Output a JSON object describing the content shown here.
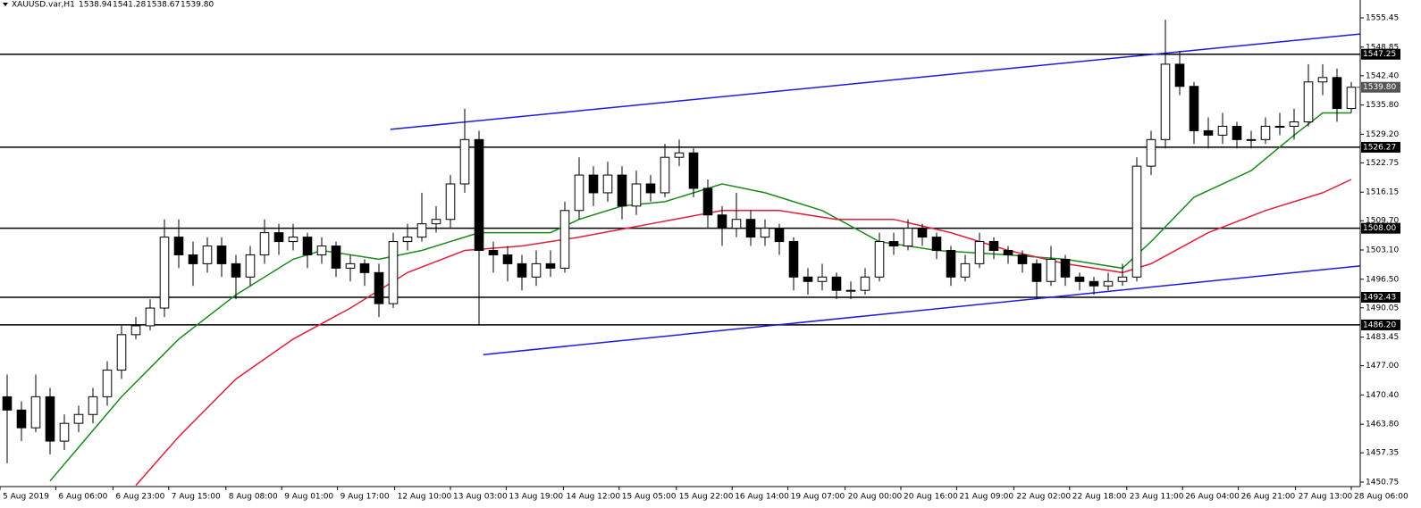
{
  "chart_data": {
    "type": "candlestick",
    "title": "XAUUSD.var,H1",
    "header_values": [
      "1538.94",
      "1541.28",
      "1538.67",
      "1539.80"
    ],
    "open": [
      1470,
      1467,
      1463,
      1470,
      1460,
      1464,
      1466,
      1470,
      1476,
      1484,
      1486,
      1490,
      1506,
      1502,
      1500,
      1504,
      1500,
      1497,
      1502,
      1507,
      1505,
      1506,
      1502,
      1504,
      1499,
      1500,
      1498,
      1491,
      1505,
      1506,
      1509,
      1510,
      1518,
      1528,
      1503,
      1502,
      1500,
      1497,
      1500,
      1499,
      1512,
      1520,
      1516,
      1520,
      1513,
      1518,
      1516,
      1524,
      1525,
      1517,
      1511,
      1508,
      1510,
      1506,
      1508,
      1505,
      1497,
      1496,
      1497,
      1494,
      1494,
      1497,
      1505,
      1504,
      1508,
      1506,
      1503,
      1497,
      1500,
      1505,
      1503,
      1502,
      1500,
      1496,
      1501,
      1497,
      1496,
      1495,
      1496,
      1497,
      1522,
      1528,
      1545,
      1540,
      1530,
      1529,
      1531,
      1528,
      1528,
      1531,
      1531,
      1532,
      1541,
      1542,
      1535
    ],
    "high": [
      1475,
      1469,
      1475,
      1472,
      1466,
      1468,
      1472,
      1478,
      1486,
      1488,
      1492,
      1510,
      1510,
      1505,
      1506,
      1506,
      1502,
      1504,
      1510,
      1509,
      1509,
      1507,
      1506,
      1505,
      1502,
      1501,
      1500,
      1507,
      1509,
      1516,
      1513,
      1520,
      1535,
      1530,
      1505,
      1504,
      1502,
      1503,
      1503,
      1514,
      1524,
      1522,
      1523,
      1522,
      1521,
      1520,
      1527,
      1528,
      1526,
      1519,
      1513,
      1516,
      1512,
      1510,
      1509,
      1506,
      1499,
      1500,
      1498,
      1496,
      1499,
      1507,
      1507,
      1510,
      1509,
      1507,
      1504,
      1502,
      1507,
      1506,
      1504,
      1503,
      1501,
      1504,
      1502,
      1498,
      1497,
      1498,
      1500,
      1524,
      1530,
      1555,
      1548,
      1541,
      1533,
      1534,
      1532,
      1530,
      1533,
      1534,
      1535,
      1545,
      1545,
      1544,
      1541
    ],
    "low": [
      1455,
      1460,
      1462,
      1457,
      1458,
      1462,
      1464,
      1468,
      1474,
      1483,
      1485,
      1488,
      1499,
      1495,
      1498,
      1497,
      1492,
      1495,
      1500,
      1502,
      1503,
      1499,
      1500,
      1497,
      1496,
      1495,
      1488,
      1490,
      1503,
      1505,
      1507,
      1508,
      1516,
      1486,
      1498,
      1496,
      1494,
      1495,
      1497,
      1498,
      1510,
      1513,
      1514,
      1510,
      1511,
      1514,
      1515,
      1522,
      1515,
      1508,
      1504,
      1506,
      1504,
      1504,
      1502,
      1494,
      1493,
      1494,
      1492,
      1492,
      1493,
      1496,
      1502,
      1503,
      1504,
      1501,
      1495,
      1496,
      1499,
      1501,
      1500,
      1498,
      1492,
      1495,
      1495,
      1494,
      1493,
      1494,
      1495,
      1496,
      1520,
      1526,
      1538,
      1527,
      1526,
      1527,
      1526,
      1526,
      1527,
      1529,
      1528,
      1531,
      1538,
      1532,
      1534
    ],
    "close": [
      1467,
      1463,
      1470,
      1460,
      1464,
      1466,
      1470,
      1476,
      1484,
      1486,
      1490,
      1506,
      1502,
      1500,
      1504,
      1500,
      1497,
      1502,
      1507,
      1505,
      1506,
      1502,
      1504,
      1499,
      1500,
      1498,
      1491,
      1505,
      1506,
      1509,
      1510,
      1518,
      1528,
      1503,
      1502,
      1500,
      1497,
      1500,
      1499,
      1512,
      1520,
      1516,
      1520,
      1513,
      1518,
      1516,
      1524,
      1525,
      1517,
      1511,
      1508,
      1510,
      1506,
      1508,
      1505,
      1497,
      1496,
      1497,
      1494,
      1494,
      1497,
      1505,
      1504,
      1508,
      1506,
      1503,
      1497,
      1500,
      1505,
      1503,
      1502,
      1500,
      1496,
      1501,
      1497,
      1496,
      1495,
      1496,
      1497,
      1522,
      1528,
      1545,
      1540,
      1530,
      1529,
      1531,
      1528,
      1528,
      1531,
      1531,
      1532,
      1541,
      1542,
      1535,
      1539.8
    ],
    "lines": [
      {
        "color": "#1a8a1a",
        "x": [
          3,
          8,
          12,
          16,
          20,
          22,
          26,
          29,
          33,
          38,
          40,
          43,
          46,
          50,
          53,
          57,
          61,
          65,
          70,
          74,
          78,
          80,
          83,
          87,
          90,
          92,
          94
        ],
        "values": [
          1451,
          1470,
          1483,
          1493,
          1501,
          1503,
          1501,
          1503,
          1507,
          1507,
          1510,
          1513,
          1514,
          1518,
          1516,
          1512,
          1505,
          1503,
          1502,
          1501,
          1499,
          1505,
          1515,
          1521,
          1529,
          1534,
          1534
        ]
      },
      {
        "color": "#e0203a",
        "x": [
          9,
          12,
          16,
          20,
          24,
          28,
          32,
          36,
          40,
          45,
          50,
          54,
          58,
          62,
          66,
          70,
          74,
          78,
          80,
          84,
          88,
          92,
          94
        ],
        "values": [
          1450,
          1461,
          1474,
          1483,
          1490,
          1498,
          1503,
          1504,
          1506,
          1509,
          1512,
          1512,
          1510,
          1510,
          1507,
          1503,
          1500,
          1498,
          1500,
          1507,
          1512,
          1516,
          1519
        ]
      }
    ],
    "levels": [
      {
        "value": 1547.25
      },
      {
        "value": 1526.27
      },
      {
        "value": 1508,
        "label": "1508.00"
      },
      {
        "value": 1492.43
      },
      {
        "value": 1486.2,
        "label": "1486.20"
      }
    ],
    "trendlines": [
      {
        "color": "#1c1ce0",
        "x": [
          26.8,
          94.6
        ],
        "values": [
          1530.3,
          1551.8
        ]
      },
      {
        "color": "#1c1ce0",
        "x": [
          33.3,
          94.6
        ],
        "values": [
          1479.5,
          1499.5
        ]
      }
    ],
    "last_price": {
      "value": 1539.8,
      "label": "1539.80"
    },
    "xlim": [
      -0.5,
      94.625
    ],
    "ylim": [
      1449.74,
      1559.48
    ],
    "yticks": [
      1555.45,
      1548.85,
      {
        "value": 1542.4,
        "label": "1542.40"
      },
      {
        "value": 1535.8,
        "label": "1535.80"
      },
      {
        "value": 1529.2,
        "label": "1529.20"
      },
      1522.75,
      1516.15,
      {
        "value": 1509.7,
        "label": "1509.70"
      },
      {
        "value": 1503.1,
        "label": "1503.10"
      },
      {
        "value": 1496.5,
        "label": "1496.50"
      },
      1490.05,
      1483.45,
      {
        "value": 1477,
        "label": "1477.00"
      },
      {
        "value": 1470.4,
        "label": "1470.40"
      },
      {
        "value": 1463.8,
        "label": "1463.80"
      },
      1457.35,
      1450.75
    ],
    "xticks": [
      {
        "value": -0.5,
        "label": "5 Aug 2019"
      },
      {
        "value": 3.4,
        "label": "6 Aug 06:00"
      },
      {
        "value": 7.4,
        "label": "6 Aug 23:00"
      },
      {
        "value": 11.3,
        "label": "7 Aug 15:00"
      },
      {
        "value": 15.3,
        "label": "8 Aug 08:00"
      },
      {
        "value": 19.2,
        "label": "9 Aug 01:00"
      },
      {
        "value": 23.1,
        "label": "9 Aug 17:00"
      },
      {
        "value": 27.1,
        "label": "12 Aug 10:00"
      },
      {
        "value": 31,
        "label": "13 Aug 03:00"
      },
      {
        "value": 34.9,
        "label": "13 Aug 19:00"
      },
      {
        "value": 38.9,
        "label": "14 Aug 12:00"
      },
      {
        "value": 42.8,
        "label": "15 Aug 05:00"
      },
      {
        "value": 46.8,
        "label": "15 Aug 22:00"
      },
      {
        "value": 50.7,
        "label": "16 Aug 14:00"
      },
      {
        "value": 54.6,
        "label": "19 Aug 07:00"
      },
      {
        "value": 58.6,
        "label": "20 Aug 00:00"
      },
      {
        "value": 62.5,
        "label": "20 Aug 16:00"
      },
      {
        "value": 66.4,
        "label": "21 Aug 09:00"
      },
      {
        "value": 70.4,
        "label": "22 Aug 02:00"
      },
      {
        "value": 74.3,
        "label": "22 Aug 18:00"
      },
      {
        "value": 78.3,
        "label": "23 Aug 11:00"
      },
      {
        "value": 82.2,
        "label": "26 Aug 04:00"
      },
      {
        "value": 86.1,
        "label": "26 Aug 21:00"
      },
      {
        "value": 90.1,
        "label": "27 Aug 13:00"
      },
      {
        "value": 94,
        "label": "28 Aug 06:00"
      }
    ]
  }
}
